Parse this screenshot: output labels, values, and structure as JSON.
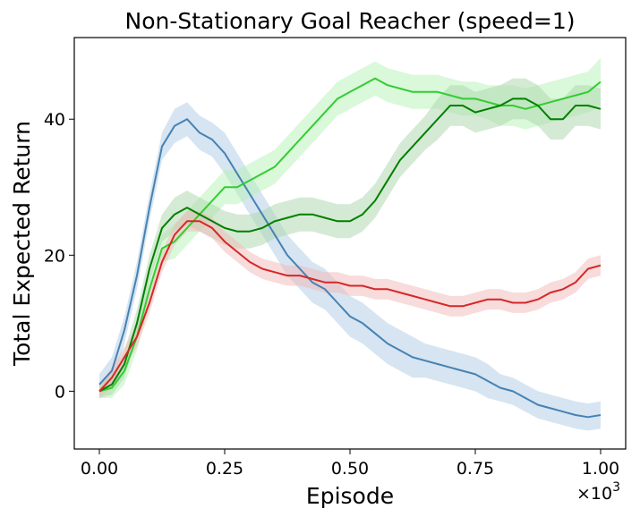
{
  "chart_data": {
    "type": "line",
    "title": "Non-Stationary Goal Reacher (speed=1)",
    "xlabel": "Episode",
    "ylabel": "Total Expected Return",
    "x_multiplier_label": "×10",
    "x_multiplier_exponent": "3",
    "xlim": [
      -0.05,
      1.05
    ],
    "ylim": [
      -8.5,
      52
    ],
    "xticks": [
      0.0,
      0.25,
      0.5,
      0.75,
      1.0
    ],
    "xtick_labels": [
      "0.00",
      "0.25",
      "0.50",
      "0.75",
      "1.00"
    ],
    "yticks": [
      0,
      20,
      40
    ],
    "ytick_labels": [
      "0",
      "20",
      "40"
    ],
    "grid": false,
    "legend": "none",
    "x": [
      0.0,
      0.025,
      0.05,
      0.075,
      0.1,
      0.125,
      0.15,
      0.175,
      0.2,
      0.225,
      0.25,
      0.275,
      0.3,
      0.325,
      0.35,
      0.375,
      0.4,
      0.425,
      0.45,
      0.475,
      0.5,
      0.525,
      0.55,
      0.575,
      0.6,
      0.625,
      0.65,
      0.675,
      0.7,
      0.725,
      0.75,
      0.775,
      0.8,
      0.825,
      0.85,
      0.875,
      0.9,
      0.925,
      0.95,
      0.975,
      1.0
    ],
    "series": [
      {
        "color": "#4682b4",
        "band_color": "#aecbe3",
        "values": [
          1,
          3,
          9,
          17,
          27,
          36,
          39,
          40,
          38,
          37,
          35,
          32,
          29,
          26,
          23,
          20,
          18,
          16,
          15,
          13,
          11,
          10,
          8.5,
          7,
          6,
          5,
          4.5,
          4,
          3.5,
          3,
          2.5,
          1.5,
          0.5,
          0,
          -1,
          -2,
          -2.5,
          -3,
          -3.5,
          -3.8,
          -3.5
        ],
        "band": [
          1.5,
          2,
          2,
          2,
          2,
          2,
          2.5,
          2.5,
          2.5,
          2.5,
          3,
          3,
          3,
          3,
          3,
          3,
          3,
          3,
          3,
          3,
          3,
          3,
          3,
          3,
          3,
          3,
          2.5,
          2.5,
          2.5,
          2.5,
          2.5,
          2.5,
          2,
          2,
          2,
          2,
          2,
          2,
          2,
          2,
          2
        ]
      },
      {
        "color": "#32cd32",
        "band_color": "#b6f2b6",
        "values": [
          0,
          0.5,
          3,
          8,
          15,
          21,
          22,
          24,
          26,
          28,
          30,
          30,
          31,
          32,
          33,
          35,
          37,
          39,
          41,
          43,
          44,
          45,
          46,
          45,
          44.5,
          44,
          44,
          44,
          43.5,
          43,
          43,
          42.5,
          42,
          42,
          41.5,
          42,
          42.5,
          43,
          43.5,
          44,
          45.5
        ],
        "band": [
          1,
          1.5,
          2,
          2,
          2,
          2,
          2.5,
          2.5,
          2.5,
          2.5,
          2.5,
          2.5,
          2.5,
          2.5,
          2.5,
          2.5,
          2.5,
          2.5,
          2.5,
          2.5,
          2.5,
          2.5,
          2.5,
          2.5,
          2.5,
          2.5,
          2.5,
          2.5,
          2.5,
          2.5,
          2.5,
          2.5,
          3,
          3,
          3,
          3,
          3,
          3,
          3,
          3,
          3.5
        ]
      },
      {
        "color": "#007f00",
        "band_color": "#a9d6a9",
        "values": [
          0,
          1,
          4,
          10,
          18,
          24,
          26,
          27,
          26,
          25,
          24,
          23.5,
          23.5,
          24,
          25,
          25.5,
          26,
          26,
          25.5,
          25,
          25,
          26,
          28,
          31,
          34,
          36,
          38,
          40,
          42,
          42,
          41,
          41.5,
          42,
          43,
          43,
          42,
          40,
          40,
          42,
          42,
          41.5
        ],
        "band": [
          1,
          1.5,
          2,
          2,
          2,
          2,
          2.5,
          2.5,
          2.5,
          2.5,
          2.5,
          2.5,
          2.5,
          2.5,
          2.5,
          2.5,
          2.5,
          2.5,
          2.5,
          2.5,
          2.5,
          2.5,
          2.5,
          2.5,
          2.5,
          2.5,
          2.5,
          3,
          3,
          3,
          3,
          3,
          3,
          3,
          3,
          3,
          3,
          3,
          3,
          3,
          3
        ]
      },
      {
        "color": "#d62728",
        "band_color": "#f2b8b8",
        "values": [
          0,
          2,
          5,
          8,
          13,
          19,
          23,
          25,
          25,
          24,
          22,
          20.5,
          19,
          18,
          17.5,
          17,
          17,
          16.5,
          16,
          16,
          15.5,
          15.5,
          15,
          15,
          14.5,
          14,
          13.5,
          13,
          12.5,
          12.5,
          13,
          13.5,
          13.5,
          13,
          13,
          13.5,
          14.5,
          15,
          16,
          18,
          18.5
        ],
        "band": [
          1,
          1.5,
          1.5,
          1.5,
          1.5,
          1.5,
          1.5,
          1.5,
          1.5,
          1.5,
          1.5,
          1.5,
          1.5,
          1.5,
          1.5,
          1.5,
          1.5,
          1.5,
          1.5,
          1.5,
          1.5,
          1.5,
          1.5,
          1.5,
          1.5,
          1.5,
          1.5,
          1.5,
          1.5,
          1.5,
          1.5,
          1.5,
          1.5,
          1.5,
          1.5,
          1.5,
          1.5,
          1.5,
          1.5,
          1.5,
          1.5
        ]
      }
    ]
  }
}
